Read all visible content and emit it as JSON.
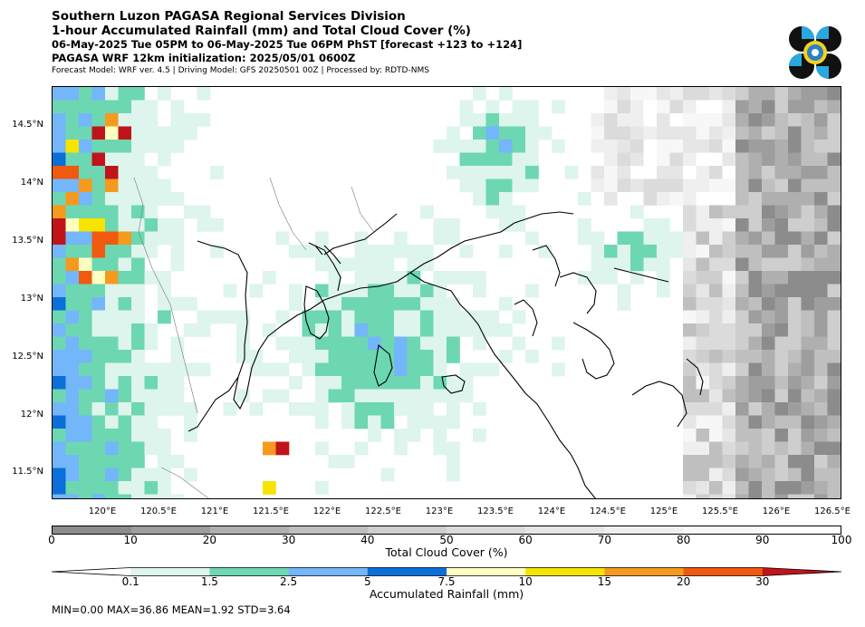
{
  "title": {
    "line1": "Southern Luzon PAGASA Regional Services Division",
    "line2": "1-hour Accumulated Rainfall (mm) and Total Cloud Cover (%)",
    "line3": "06-May-2025 Tue 05PM to 06-May-2025 Tue 06PM PhST [forecast +123 to +124]",
    "line4": "PAGASA WRF 12km initialization: 2025/05/01 0600Z",
    "line5": "Forecast Model: WRF ver. 4.5 | Driving Model: GFS 20250501 00Z | Processed by: RDTD-NMS"
  },
  "logo": {
    "icon": "pagasa-logo-icon"
  },
  "map": {
    "lat_labels": [
      "14.5°N",
      "14°N",
      "13.5°N",
      "13°N",
      "12.5°N",
      "12°N",
      "11.5°N"
    ],
    "lon_labels": [
      "120°E",
      "120.5°E",
      "121°E",
      "121.5°E",
      "122°E",
      "122.5°E",
      "123°E",
      "123.5°E",
      "124°E",
      "124.5°E",
      "125°E",
      "125.5°E",
      "126°E",
      "126.5°E"
    ]
  },
  "cloud_colorbar": {
    "ticks": [
      "0",
      "10",
      "20",
      "30",
      "40",
      "50",
      "60",
      "70",
      "80",
      "90",
      "100"
    ],
    "label": "Total Cloud Cover (%)",
    "colors": [
      "#8c8c8c",
      "#9e9e9e",
      "#afafaf",
      "#bfbfbf",
      "#cecece",
      "#dbdbdb",
      "#e6e6e6",
      "#efefef",
      "#f7f7f7",
      "#ffffff"
    ]
  },
  "rain_colorbar": {
    "ticks": [
      "0.1",
      "1.5",
      "2.5",
      "5",
      "7.5",
      "10",
      "15",
      "20",
      "30"
    ],
    "label": "Accumulated Rainfall (mm)",
    "colors": [
      "#ffffff",
      "#ddf5ec",
      "#6dd7b1",
      "#74b6fa",
      "#0a6fd9",
      "#ffffc0",
      "#f7e400",
      "#f59a1e",
      "#ef5a0e",
      "#c0141a"
    ]
  },
  "stats": "MIN=0.00   MAX=36.86   MEAN=1.92   STD=3.64"
}
